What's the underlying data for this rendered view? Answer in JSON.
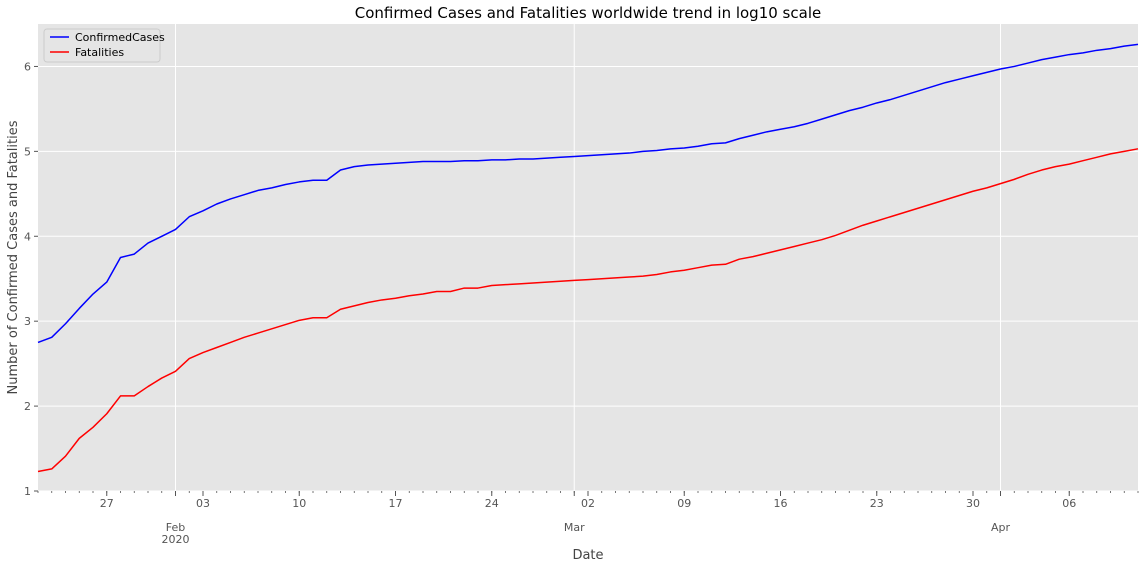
{
  "chart_data": {
    "type": "line",
    "title": "Confirmed Cases and Fatalities worldwide trend in log10 scale",
    "xlabel": "Date",
    "ylabel": "Number of Confirmed Cases and Fatalities",
    "x_start": "2020-01-22",
    "x_end": "2020-04-11",
    "ylim": [
      1,
      6.5
    ],
    "yticks": [
      1,
      2,
      3,
      4,
      5,
      6
    ],
    "grid": true,
    "legend_position": "top-left",
    "minor_x_ticks": true,
    "x_major_ticks": [
      {
        "date": "2020-01-27",
        "label": "27",
        "sublabel": ""
      },
      {
        "date": "2020-02-01",
        "label": "Feb",
        "sublabel": "2020"
      },
      {
        "date": "2020-02-03",
        "label": "03",
        "sublabel": ""
      },
      {
        "date": "2020-02-10",
        "label": "10",
        "sublabel": ""
      },
      {
        "date": "2020-02-17",
        "label": "17",
        "sublabel": ""
      },
      {
        "date": "2020-02-24",
        "label": "24",
        "sublabel": ""
      },
      {
        "date": "2020-03-01",
        "label": "Mar",
        "sublabel": ""
      },
      {
        "date": "2020-03-02",
        "label": "02",
        "sublabel": ""
      },
      {
        "date": "2020-03-09",
        "label": "09",
        "sublabel": ""
      },
      {
        "date": "2020-03-16",
        "label": "16",
        "sublabel": ""
      },
      {
        "date": "2020-03-23",
        "label": "23",
        "sublabel": ""
      },
      {
        "date": "2020-03-30",
        "label": "30",
        "sublabel": ""
      },
      {
        "date": "2020-04-01",
        "label": "Apr",
        "sublabel": ""
      },
      {
        "date": "2020-04-06",
        "label": "06",
        "sublabel": ""
      }
    ],
    "x_gridlines": [
      "2020-02-01",
      "2020-03-01",
      "2020-04-01"
    ],
    "series": [
      {
        "name": "ConfirmedCases",
        "color": "#0000ff",
        "points": [
          [
            "2020-01-22",
            2.75
          ],
          [
            "2020-01-23",
            2.81
          ],
          [
            "2020-01-24",
            2.97
          ],
          [
            "2020-01-25",
            3.15
          ],
          [
            "2020-01-26",
            3.32
          ],
          [
            "2020-01-27",
            3.46
          ],
          [
            "2020-01-28",
            3.75
          ],
          [
            "2020-01-29",
            3.79
          ],
          [
            "2020-01-30",
            3.92
          ],
          [
            "2020-01-31",
            4.0
          ],
          [
            "2020-02-01",
            4.08
          ],
          [
            "2020-02-02",
            4.23
          ],
          [
            "2020-02-03",
            4.3
          ],
          [
            "2020-02-04",
            4.38
          ],
          [
            "2020-02-05",
            4.44
          ],
          [
            "2020-02-06",
            4.49
          ],
          [
            "2020-02-07",
            4.54
          ],
          [
            "2020-02-08",
            4.57
          ],
          [
            "2020-02-09",
            4.61
          ],
          [
            "2020-02-10",
            4.64
          ],
          [
            "2020-02-11",
            4.66
          ],
          [
            "2020-02-12",
            4.66
          ],
          [
            "2020-02-13",
            4.78
          ],
          [
            "2020-02-14",
            4.82
          ],
          [
            "2020-02-15",
            4.84
          ],
          [
            "2020-02-16",
            4.85
          ],
          [
            "2020-02-17",
            4.86
          ],
          [
            "2020-02-18",
            4.87
          ],
          [
            "2020-02-19",
            4.88
          ],
          [
            "2020-02-20",
            4.88
          ],
          [
            "2020-02-21",
            4.88
          ],
          [
            "2020-02-22",
            4.89
          ],
          [
            "2020-02-23",
            4.89
          ],
          [
            "2020-02-24",
            4.9
          ],
          [
            "2020-02-25",
            4.9
          ],
          [
            "2020-02-26",
            4.91
          ],
          [
            "2020-02-27",
            4.91
          ],
          [
            "2020-02-28",
            4.92
          ],
          [
            "2020-02-29",
            4.93
          ],
          [
            "2020-03-01",
            4.94
          ],
          [
            "2020-03-02",
            4.95
          ],
          [
            "2020-03-03",
            4.96
          ],
          [
            "2020-03-04",
            4.97
          ],
          [
            "2020-03-05",
            4.98
          ],
          [
            "2020-03-06",
            5.0
          ],
          [
            "2020-03-07",
            5.01
          ],
          [
            "2020-03-08",
            5.03
          ],
          [
            "2020-03-09",
            5.04
          ],
          [
            "2020-03-10",
            5.06
          ],
          [
            "2020-03-11",
            5.09
          ],
          [
            "2020-03-12",
            5.1
          ],
          [
            "2020-03-13",
            5.15
          ],
          [
            "2020-03-14",
            5.19
          ],
          [
            "2020-03-15",
            5.23
          ],
          [
            "2020-03-16",
            5.26
          ],
          [
            "2020-03-17",
            5.29
          ],
          [
            "2020-03-18",
            5.33
          ],
          [
            "2020-03-19",
            5.38
          ],
          [
            "2020-03-20",
            5.43
          ],
          [
            "2020-03-21",
            5.48
          ],
          [
            "2020-03-22",
            5.52
          ],
          [
            "2020-03-23",
            5.57
          ],
          [
            "2020-03-24",
            5.61
          ],
          [
            "2020-03-25",
            5.66
          ],
          [
            "2020-03-26",
            5.71
          ],
          [
            "2020-03-27",
            5.76
          ],
          [
            "2020-03-28",
            5.81
          ],
          [
            "2020-03-29",
            5.85
          ],
          [
            "2020-03-30",
            5.89
          ],
          [
            "2020-03-31",
            5.93
          ],
          [
            "2020-04-01",
            5.97
          ],
          [
            "2020-04-02",
            6.0
          ],
          [
            "2020-04-03",
            6.04
          ],
          [
            "2020-04-04",
            6.08
          ],
          [
            "2020-04-05",
            6.11
          ],
          [
            "2020-04-06",
            6.14
          ],
          [
            "2020-04-07",
            6.16
          ],
          [
            "2020-04-08",
            6.19
          ],
          [
            "2020-04-09",
            6.21
          ],
          [
            "2020-04-10",
            6.24
          ],
          [
            "2020-04-11",
            6.26
          ]
        ]
      },
      {
        "name": "Fatalities",
        "color": "#ff0000",
        "points": [
          [
            "2020-01-22",
            1.23
          ],
          [
            "2020-01-23",
            1.26
          ],
          [
            "2020-01-24",
            1.41
          ],
          [
            "2020-01-25",
            1.62
          ],
          [
            "2020-01-26",
            1.75
          ],
          [
            "2020-01-27",
            1.91
          ],
          [
            "2020-01-28",
            2.12
          ],
          [
            "2020-01-29",
            2.12
          ],
          [
            "2020-01-30",
            2.23
          ],
          [
            "2020-01-31",
            2.33
          ],
          [
            "2020-02-01",
            2.41
          ],
          [
            "2020-02-02",
            2.56
          ],
          [
            "2020-02-03",
            2.63
          ],
          [
            "2020-02-04",
            2.69
          ],
          [
            "2020-02-05",
            2.75
          ],
          [
            "2020-02-06",
            2.81
          ],
          [
            "2020-02-07",
            2.86
          ],
          [
            "2020-02-08",
            2.91
          ],
          [
            "2020-02-09",
            2.96
          ],
          [
            "2020-02-10",
            3.01
          ],
          [
            "2020-02-11",
            3.04
          ],
          [
            "2020-02-12",
            3.04
          ],
          [
            "2020-02-13",
            3.14
          ],
          [
            "2020-02-14",
            3.18
          ],
          [
            "2020-02-15",
            3.22
          ],
          [
            "2020-02-16",
            3.25
          ],
          [
            "2020-02-17",
            3.27
          ],
          [
            "2020-02-18",
            3.3
          ],
          [
            "2020-02-19",
            3.32
          ],
          [
            "2020-02-20",
            3.35
          ],
          [
            "2020-02-21",
            3.35
          ],
          [
            "2020-02-22",
            3.39
          ],
          [
            "2020-02-23",
            3.39
          ],
          [
            "2020-02-24",
            3.42
          ],
          [
            "2020-02-25",
            3.43
          ],
          [
            "2020-02-26",
            3.44
          ],
          [
            "2020-02-27",
            3.45
          ],
          [
            "2020-02-28",
            3.46
          ],
          [
            "2020-02-29",
            3.47
          ],
          [
            "2020-03-01",
            3.48
          ],
          [
            "2020-03-02",
            3.49
          ],
          [
            "2020-03-03",
            3.5
          ],
          [
            "2020-03-04",
            3.51
          ],
          [
            "2020-03-05",
            3.52
          ],
          [
            "2020-03-06",
            3.53
          ],
          [
            "2020-03-07",
            3.55
          ],
          [
            "2020-03-08",
            3.58
          ],
          [
            "2020-03-09",
            3.6
          ],
          [
            "2020-03-10",
            3.63
          ],
          [
            "2020-03-11",
            3.66
          ],
          [
            "2020-03-12",
            3.67
          ],
          [
            "2020-03-13",
            3.73
          ],
          [
            "2020-03-14",
            3.76
          ],
          [
            "2020-03-15",
            3.8
          ],
          [
            "2020-03-16",
            3.84
          ],
          [
            "2020-03-17",
            3.88
          ],
          [
            "2020-03-18",
            3.92
          ],
          [
            "2020-03-19",
            3.96
          ],
          [
            "2020-03-20",
            4.01
          ],
          [
            "2020-03-21",
            4.07
          ],
          [
            "2020-03-22",
            4.13
          ],
          [
            "2020-03-23",
            4.18
          ],
          [
            "2020-03-24",
            4.23
          ],
          [
            "2020-03-25",
            4.28
          ],
          [
            "2020-03-26",
            4.33
          ],
          [
            "2020-03-27",
            4.38
          ],
          [
            "2020-03-28",
            4.43
          ],
          [
            "2020-03-29",
            4.48
          ],
          [
            "2020-03-30",
            4.53
          ],
          [
            "2020-03-31",
            4.57
          ],
          [
            "2020-04-01",
            4.62
          ],
          [
            "2020-04-02",
            4.67
          ],
          [
            "2020-04-03",
            4.73
          ],
          [
            "2020-04-04",
            4.78
          ],
          [
            "2020-04-05",
            4.82
          ],
          [
            "2020-04-06",
            4.85
          ],
          [
            "2020-04-07",
            4.89
          ],
          [
            "2020-04-08",
            4.93
          ],
          [
            "2020-04-09",
            4.97
          ],
          [
            "2020-04-10",
            5.0
          ],
          [
            "2020-04-11",
            5.03
          ]
        ]
      }
    ]
  },
  "colors": {
    "plot_background": "#e5e5e5",
    "grid": "#ffffff"
  }
}
